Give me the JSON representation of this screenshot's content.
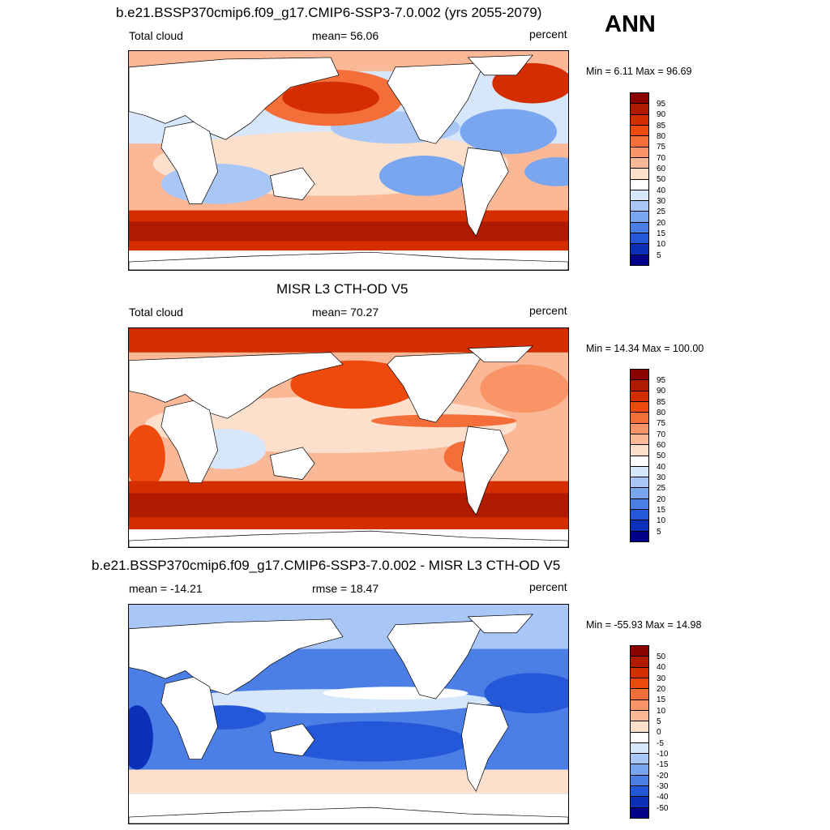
{
  "panels": [
    {
      "title": "b.e21.BSSP370cmip6.f09_g17.CMIP6-SSP3-7.0.002 (yrs 2055-2079)",
      "left_label": "Total cloud",
      "center_label": "mean=  56.06",
      "right_label": "percent",
      "minmax": "Min =   6.11 Max =  96.69",
      "stats": {
        "mean": 56.06,
        "min": 6.11,
        "max": 96.69
      },
      "colorbar": {
        "labels": [
          "95",
          "90",
          "85",
          "80",
          "75",
          "70",
          "60",
          "50",
          "40",
          "30",
          "25",
          "20",
          "15",
          "10",
          "5"
        ],
        "colors": [
          "#8b0000",
          "#b01a00",
          "#d42d00",
          "#ee4a0e",
          "#f46e3a",
          "#f89466",
          "#fbb896",
          "#fde0cc",
          "#ffffff",
          "#d6e6fb",
          "#a8c7f7",
          "#7aa6f0",
          "#4c7fe6",
          "#2558d8",
          "#0c30b8",
          "#00008b"
        ]
      }
    },
    {
      "title": "MISR L3 CTH-OD V5",
      "left_label": "Total cloud",
      "center_label": "mean=  70.27",
      "right_label": "percent",
      "minmax": "Min =  14.34 Max = 100.00",
      "stats": {
        "mean": 70.27,
        "min": 14.34,
        "max": 100.0
      },
      "colorbar": {
        "labels": [
          "95",
          "90",
          "85",
          "80",
          "75",
          "70",
          "60",
          "50",
          "40",
          "30",
          "25",
          "20",
          "15",
          "10",
          "5"
        ],
        "colors": [
          "#8b0000",
          "#b01a00",
          "#d42d00",
          "#ee4a0e",
          "#f46e3a",
          "#f89466",
          "#fbb896",
          "#fde0cc",
          "#ffffff",
          "#d6e6fb",
          "#a8c7f7",
          "#7aa6f0",
          "#4c7fe6",
          "#2558d8",
          "#0c30b8",
          "#00008b"
        ]
      }
    },
    {
      "title": "b.e21.BSSP370cmip6.f09_g17.CMIP6-SSP3-7.0.002 - MISR L3 CTH-OD V5",
      "left_label": "mean = -14.21",
      "center_label": "rmse =  18.47",
      "right_label": "percent",
      "minmax": "Min = -55.93 Max =  14.98",
      "stats": {
        "mean": -14.21,
        "rmse": 18.47,
        "min": -55.93,
        "max": 14.98
      },
      "colorbar": {
        "labels": [
          "50",
          "40",
          "30",
          "20",
          "15",
          "10",
          "5",
          "0",
          "-5",
          "-10",
          "-15",
          "-20",
          "-30",
          "-40",
          "-50"
        ],
        "colors": [
          "#8b0000",
          "#b01a00",
          "#d42d00",
          "#ee4a0e",
          "#f46e3a",
          "#f89466",
          "#fbb896",
          "#fde0cc",
          "#ffffff",
          "#d6e6fb",
          "#a8c7f7",
          "#7aa6f0",
          "#4c7fe6",
          "#2558d8",
          "#0c30b8",
          "#00008b"
        ]
      }
    }
  ],
  "season": "ANN"
}
